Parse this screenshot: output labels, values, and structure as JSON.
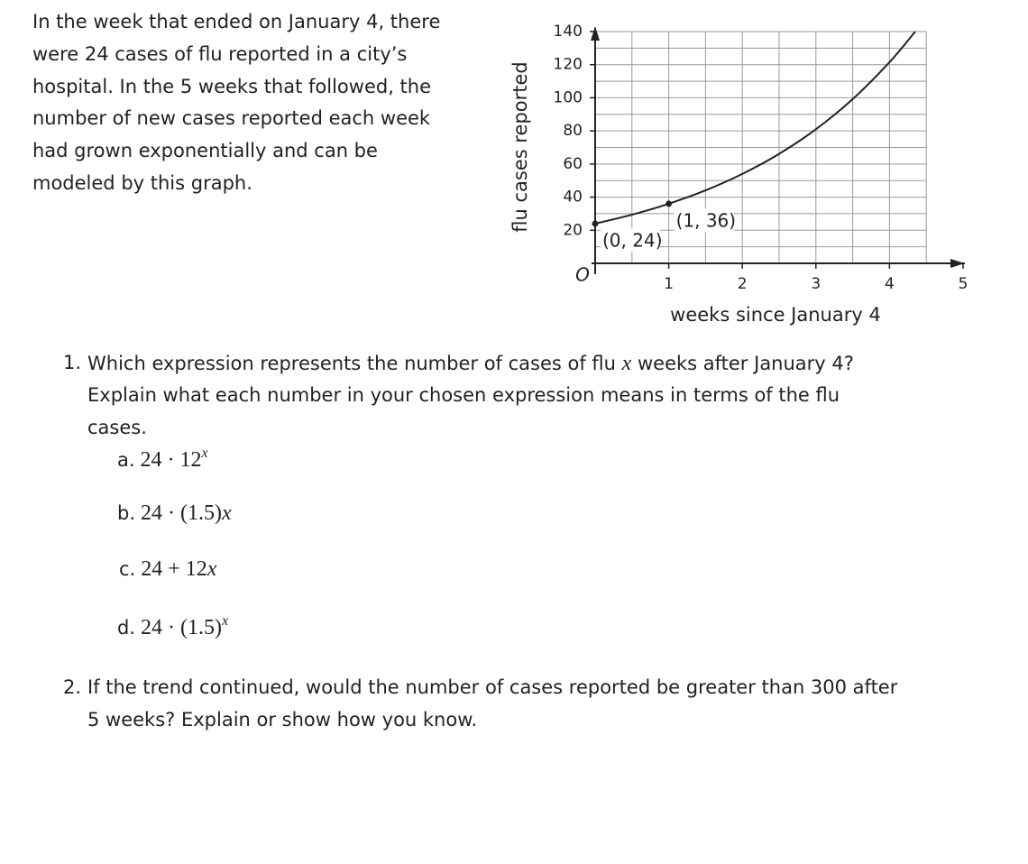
{
  "intro": {
    "lines": [
      "In the week that ended on January 4, there",
      "were 24 cases of flu reported in a city’s",
      "hospital. In the 5 weeks that followed, the",
      "number of new cases reported each week",
      "had grown exponentially and can be",
      "modeled by this graph."
    ]
  },
  "chart_data": {
    "type": "line",
    "xlabel": "weeks since January 4",
    "ylabel": "flu cases reported",
    "origin_label": "O",
    "xlim": [
      0,
      5
    ],
    "ylim": [
      0,
      140
    ],
    "xticks": [
      1,
      2,
      3,
      4,
      5
    ],
    "yticks": [
      20,
      40,
      60,
      80,
      100,
      120,
      140
    ],
    "minor_xticks": [
      0.5,
      1,
      1.5,
      2,
      2.5,
      3,
      3.5,
      4,
      4.5
    ],
    "minor_yticks": [
      10,
      20,
      30,
      40,
      50,
      60,
      70,
      80,
      90,
      100,
      110,
      120,
      130,
      140
    ],
    "grid": true,
    "color": "#222222",
    "curve": {
      "x": [
        0,
        0.5,
        1,
        1.5,
        2,
        2.5,
        3,
        3.5,
        4,
        4.35
      ],
      "y": [
        24,
        29.4,
        36,
        44.1,
        54,
        66.1,
        81,
        99.2,
        121.5,
        140
      ]
    },
    "points": {
      "x": [
        0,
        1
      ],
      "y": [
        24,
        36
      ],
      "value_labels": [
        "(0, 24)",
        "(1, 36)"
      ]
    }
  },
  "question1": {
    "number": "1.",
    "lines": [
      [
        "Which expression represents the number of cases of flu ",
        "x",
        " weeks after January 4?"
      ],
      [
        "Explain what each number in your chosen expression means in terms of the flu"
      ],
      [
        "cases."
      ]
    ],
    "options": [
      {
        "label": "a.",
        "expr": "24 · 12",
        "variable": "x",
        "superscript": true
      },
      {
        "label": "b.",
        "expr": "24 · (1.5)",
        "variable": "x",
        "superscript": false
      },
      {
        "label": "c.",
        "expr": "24 + 12",
        "variable": "x",
        "superscript": false
      },
      {
        "label": "d.",
        "expr": "24 · (1.5)",
        "variable": "x",
        "superscript": true
      }
    ]
  },
  "question2": {
    "number": "2.",
    "lines": [
      "If the trend continued, would the number of cases reported be greater than 300 after",
      "5 weeks? Explain or show how you know."
    ]
  }
}
